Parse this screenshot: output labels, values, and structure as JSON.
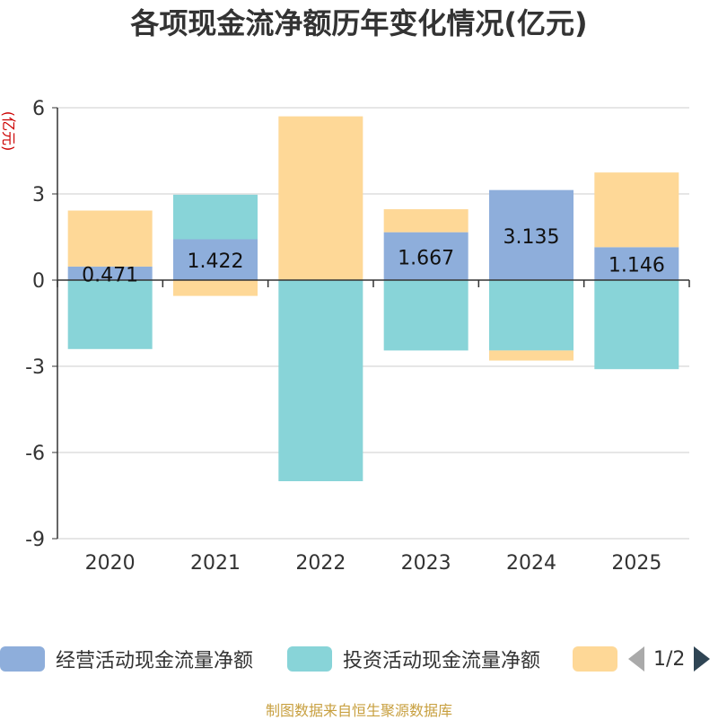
{
  "title": "各项现金流净额历年变化情况(亿元)",
  "source_note": "制图数据来自恒生聚源数据库",
  "pager": {
    "text": "1/2"
  },
  "chart_data": {
    "type": "bar",
    "stacked": true,
    "title": "各项现金流净额历年变化情况(亿元)",
    "ylabel": "(亿元)",
    "xlabel": "",
    "ylim": [
      -9,
      6
    ],
    "yticks": [
      6,
      3,
      0,
      -3,
      -6,
      -9
    ],
    "categories": [
      "2020",
      "2021",
      "2022",
      "2023",
      "2024",
      "2025"
    ],
    "series": [
      {
        "name": "经营活动现金流量净额",
        "color": "#8eaedb",
        "values": [
          0.471,
          1.422,
          0.0,
          1.667,
          3.135,
          1.146
        ],
        "labels": [
          "0.471",
          "1.422",
          "",
          "1.667",
          "3.135",
          "1.146"
        ]
      },
      {
        "name": "投资活动现金流量净额",
        "color": "#88d4d8",
        "values": [
          -2.4,
          1.55,
          -7.0,
          -2.45,
          -2.45,
          -3.1
        ]
      },
      {
        "name": "",
        "color": "#fed897",
        "values": [
          1.95,
          -0.55,
          5.7,
          0.8,
          -0.35,
          2.6
        ]
      }
    ],
    "legend": "bottom"
  }
}
